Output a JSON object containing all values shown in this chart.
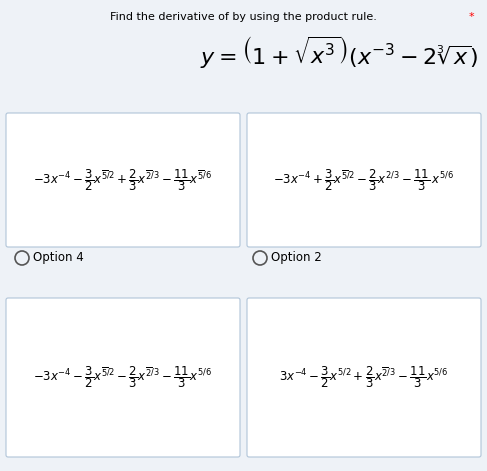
{
  "title": "Find the derivative of by using the product rule.",
  "bg_color": "#eef2f7",
  "box_color": "#ffffff",
  "text_color": "#000000",
  "border_color": "#b0c4d8",
  "label_top_left": "Option 4",
  "label_top_right": "Option 2"
}
